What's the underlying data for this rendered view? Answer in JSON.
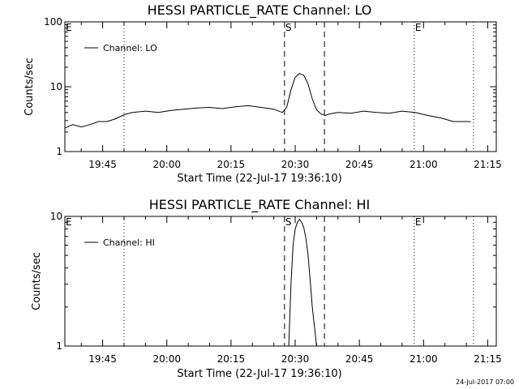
{
  "chart_data": [
    {
      "type": "line",
      "title": "HESSI PARTICLE_RATE Channel: LO",
      "xlabel": "Start Time (22-Jul-17 19:36:10)",
      "ylabel": "Counts/sec",
      "yscale": "log",
      "ylim": [
        1,
        100
      ],
      "yticks": [
        1,
        10,
        100
      ],
      "ytick_labels": [
        "1",
        "10",
        "100"
      ],
      "xlim": [
        "19:36:10",
        "21:17:00"
      ],
      "xticks": [
        "19:45",
        "20:00",
        "20:15",
        "20:30",
        "20:45",
        "21:00",
        "21:15"
      ],
      "legend": {
        "label": "Channel: LO",
        "position": "top-left"
      },
      "markers": [
        {
          "label": "E",
          "time": "19:36:10",
          "style": "none"
        },
        {
          "label": "",
          "time": "19:50:00",
          "style": "dotted"
        },
        {
          "label": "S",
          "time": "20:27:30",
          "style": "dashed"
        },
        {
          "label": "",
          "time": "20:36:50",
          "style": "dashed"
        },
        {
          "label": "E",
          "time": "20:57:50",
          "style": "dotted"
        },
        {
          "label": "",
          "time": "21:11:40",
          "style": "dotted"
        }
      ],
      "series": [
        {
          "name": "Channel: LO",
          "x": [
            "19:36:10",
            "19:38:00",
            "19:40:00",
            "19:42:00",
            "19:44:00",
            "19:46:00",
            "19:48:00",
            "19:50:00",
            "19:52:00",
            "19:55:00",
            "19:58:00",
            "20:01:00",
            "20:04:00",
            "20:07:00",
            "20:10:00",
            "20:13:00",
            "20:16:00",
            "20:19:00",
            "20:22:00",
            "20:25:00",
            "20:27:00",
            "20:28:00",
            "20:29:00",
            "20:30:00",
            "20:31:00",
            "20:32:00",
            "20:33:00",
            "20:34:00",
            "20:35:00",
            "20:36:00",
            "20:37:00",
            "20:38:00",
            "20:40:00",
            "20:43:00",
            "20:46:00",
            "20:49:00",
            "20:52:00",
            "20:55:00",
            "20:58:00",
            "21:01:00",
            "21:04:00",
            "21:07:00",
            "21:11:00"
          ],
          "y": [
            2.3,
            2.6,
            2.4,
            2.6,
            2.9,
            2.9,
            3.2,
            3.7,
            4.0,
            4.2,
            4.0,
            4.3,
            4.5,
            4.7,
            4.8,
            4.6,
            4.9,
            5.1,
            4.8,
            4.5,
            4.0,
            4.8,
            9.0,
            14.0,
            16.0,
            15.0,
            11.0,
            6.5,
            4.4,
            3.8,
            3.6,
            3.8,
            4.0,
            3.9,
            4.2,
            4.0,
            3.9,
            4.2,
            4.0,
            3.6,
            3.3,
            2.9,
            2.9
          ]
        }
      ]
    },
    {
      "type": "line",
      "title": "HESSI PARTICLE_RATE Channel: HI",
      "xlabel": "Start Time (22-Jul-17 19:36:10)",
      "ylabel": "Counts/sec",
      "yscale": "log",
      "ylim": [
        1,
        10
      ],
      "yticks": [
        1,
        10
      ],
      "ytick_labels": [
        "1",
        "10"
      ],
      "xlim": [
        "19:36:10",
        "21:17:00"
      ],
      "xticks": [
        "19:45",
        "20:00",
        "20:15",
        "20:30",
        "20:45",
        "21:00",
        "21:15"
      ],
      "legend": {
        "label": "Channel: HI",
        "position": "top-left"
      },
      "markers": [
        {
          "label": "E",
          "time": "19:36:10",
          "style": "none"
        },
        {
          "label": "",
          "time": "19:50:00",
          "style": "dotted"
        },
        {
          "label": "S",
          "time": "20:27:30",
          "style": "dashed"
        },
        {
          "label": "",
          "time": "20:36:50",
          "style": "dashed"
        },
        {
          "label": "E",
          "time": "20:57:50",
          "style": "dotted"
        },
        {
          "label": "",
          "time": "21:11:40",
          "style": "dotted"
        }
      ],
      "series": [
        {
          "name": "Channel: HI",
          "x": [
            "20:28:30",
            "20:29:00",
            "20:29:30",
            "20:30:00",
            "20:30:30",
            "20:31:00",
            "20:31:30",
            "20:32:00",
            "20:32:30",
            "20:33:00",
            "20:33:30",
            "20:34:00",
            "20:34:30",
            "20:35:00"
          ],
          "y": [
            1.0,
            3.0,
            6.0,
            8.0,
            9.0,
            9.5,
            9.0,
            8.2,
            6.8,
            5.0,
            3.2,
            2.0,
            1.4,
            1.0
          ]
        }
      ]
    }
  ],
  "footer": {
    "timestamp": "24-Jul-2017 07:00"
  }
}
